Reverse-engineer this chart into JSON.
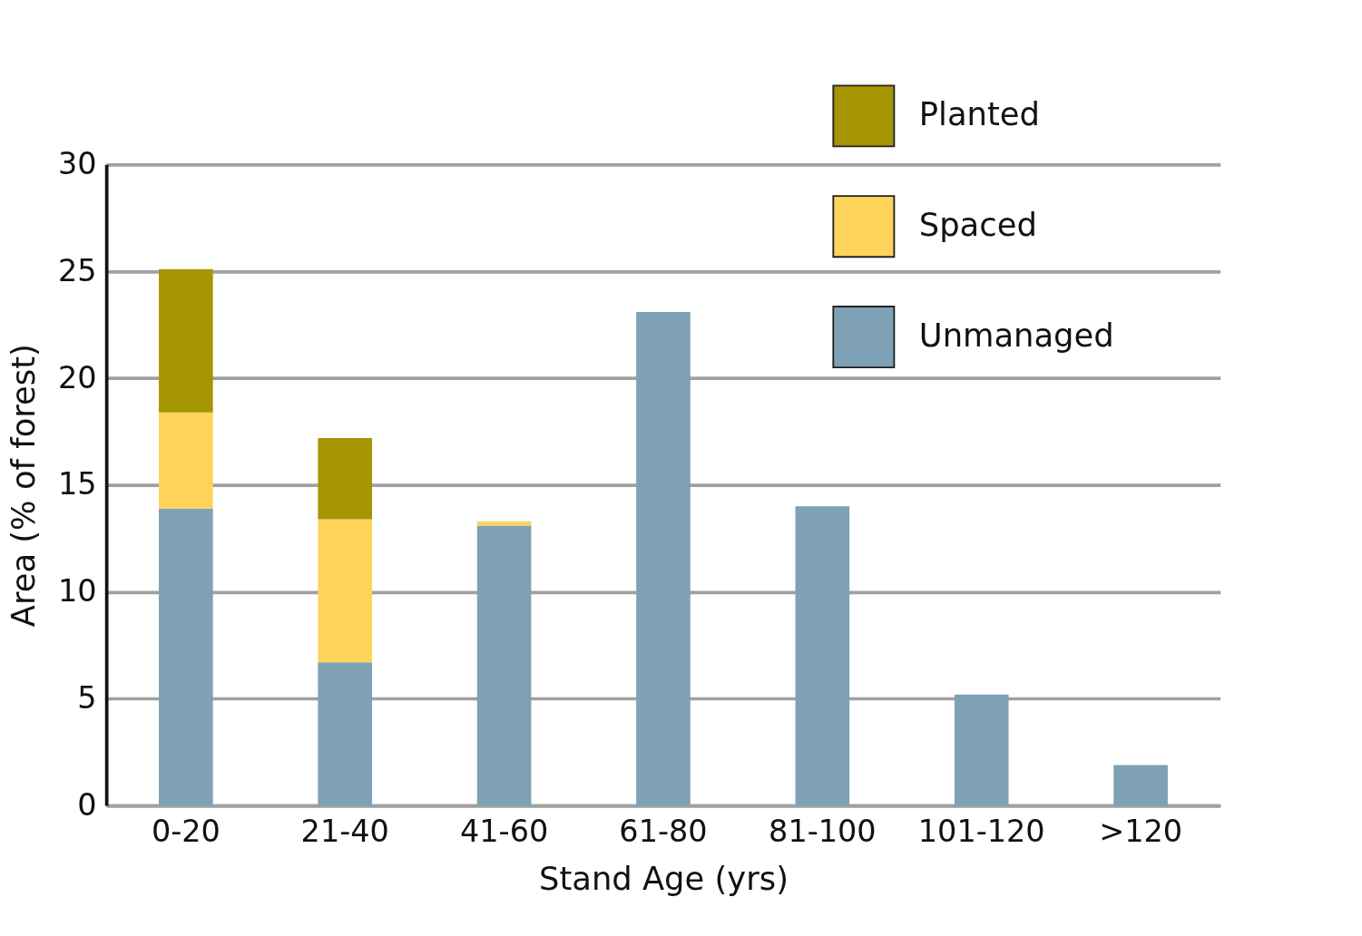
{
  "chart_data": {
    "type": "bar",
    "stacked": true,
    "xlabel": "Stand Age (yrs)",
    "ylabel": "Area (% of forest)",
    "categories": [
      "0-20",
      "21-40",
      "41-60",
      "61-80",
      "81-100",
      "101-120",
      ">120"
    ],
    "series": [
      {
        "name": "Unmanaged",
        "color": "#7fa1b5",
        "values": [
          13.9,
          6.7,
          13.1,
          23.1,
          14.0,
          5.2,
          1.9
        ]
      },
      {
        "name": "Spaced",
        "color": "#fed35a",
        "values": [
          4.5,
          6.7,
          0.2,
          null,
          null,
          null,
          null
        ]
      },
      {
        "name": "Planted",
        "color": "#a59500",
        "values": [
          6.7,
          3.8,
          null,
          null,
          null,
          null,
          null
        ]
      }
    ],
    "ylim": [
      0,
      30
    ],
    "yticks": [
      0,
      5,
      10,
      15,
      20,
      25,
      30
    ],
    "grid": "y",
    "legend": "top right"
  }
}
